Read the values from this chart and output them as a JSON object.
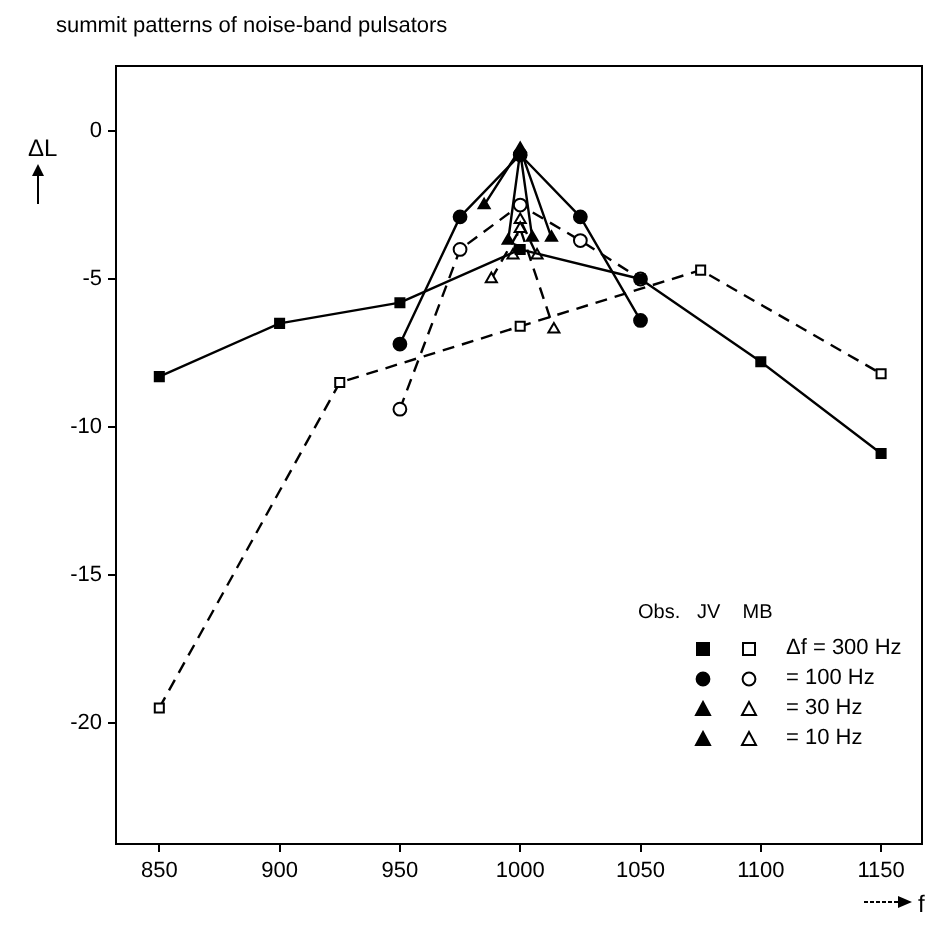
{
  "chart_data": {
    "type": "line",
    "title": "summit patterns of noise-band pulsators",
    "xlabel": "f",
    "ylabel": "ΔL",
    "legend_title": "Obs.   JV    MB",
    "xlim": [
      832,
      1167
    ],
    "ylim": [
      -24.1,
      2.2
    ],
    "xticks": [
      850,
      900,
      950,
      1000,
      1050,
      1100,
      1150
    ],
    "yticks": [
      0,
      -5,
      -10,
      -15,
      -20
    ],
    "grid": false,
    "legend": "bottom right",
    "series": [
      {
        "color": "#000000",
        "marker": "square",
        "line_style": "solid",
        "x": [
          850,
          900,
          950,
          1000,
          1050,
          1100,
          1150
        ],
        "values": [
          -8.3,
          -6.5,
          -5.8,
          -4.0,
          -5.0,
          -7.8,
          -10.9
        ]
      },
      {
        "color": "#000000",
        "marker": "circle",
        "line_style": "solid",
        "x": [
          950,
          975,
          1000,
          1025,
          1050
        ],
        "values": [
          -7.2,
          -2.9,
          -0.8,
          -2.9,
          -6.4
        ]
      },
      {
        "color": "#000000",
        "marker": "triangle",
        "line_style": "solid",
        "x": [
          995,
          1000,
          1005
        ],
        "values": [
          -3.7,
          -0.7,
          -3.6
        ]
      },
      {
        "color": "#000000",
        "marker": "triangle",
        "line_style": "solid",
        "x": [
          985,
          1000,
          1013
        ],
        "values": [
          -2.5,
          -0.6,
          -3.6
        ]
      },
      {
        "name": "Δf = 300 Hz",
        "color": "#000000",
        "marker": "square",
        "line_style": "dashed",
        "x": [
          850,
          925,
          1000,
          1075,
          1150
        ],
        "values": [
          -19.5,
          -8.5,
          -6.6,
          -4.7,
          -8.2
        ]
      },
      {
        "name": "= 100 Hz",
        "color": "#000000",
        "marker": "circle",
        "line_style": "dashed",
        "x": [
          950,
          975,
          1000,
          1025,
          1050
        ],
        "values": [
          -9.4,
          -4.0,
          -2.5,
          -3.7,
          -5.0
        ]
      },
      {
        "name": "= 30 Hz",
        "color": "#000000",
        "marker": "triangle",
        "line_style": "dashed",
        "x": [
          988,
          1000,
          1014
        ],
        "values": [
          -5.0,
          -3.3,
          -6.7
        ]
      },
      {
        "name": "= 10 Hz",
        "color": "#000000",
        "marker": "triangle",
        "line_style": "dashed",
        "x": [
          997,
          1000,
          1007
        ],
        "values": [
          -4.2,
          -3.0,
          -4.2
        ]
      }
    ]
  }
}
